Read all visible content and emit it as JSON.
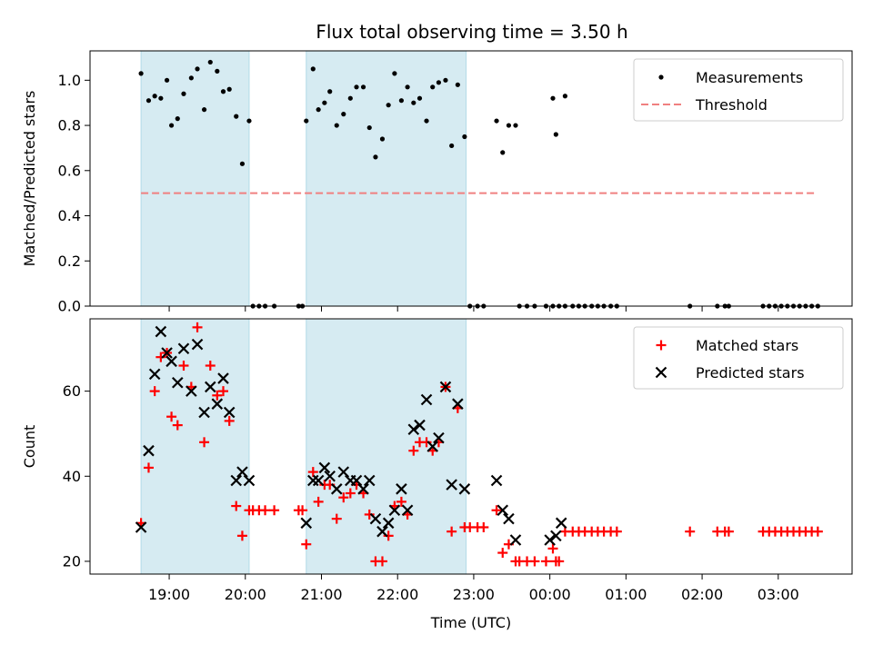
{
  "figure": {
    "title": "Flux total observing time = 3.50 h",
    "xlabel": "Time (UTC)"
  },
  "chart_data": [
    {
      "type": "scatter",
      "panel": "top",
      "ylabel": "Matched/Predicted stars",
      "xlim_hours_utc": [
        17.96,
        27.97
      ],
      "ylim": [
        0,
        1.13
      ],
      "yticks": [
        "0.0",
        "0.2",
        "0.4",
        "0.6",
        "0.8",
        "1.0"
      ],
      "xticks": [
        "19:00",
        "20:00",
        "21:00",
        "22:00",
        "23:00",
        "00:00",
        "01:00",
        "02:00",
        "03:00"
      ],
      "shaded_spans": [
        [
          18.63,
          20.05
        ],
        [
          20.8,
          22.9
        ]
      ],
      "threshold": {
        "name": "Threshold",
        "value": 0.5,
        "x_range": [
          18.63,
          27.5
        ],
        "color": "#f08080"
      },
      "legend": {
        "position": "top-right",
        "entries": [
          "Measurements",
          "Threshold"
        ]
      },
      "series": [
        {
          "name": "Measurements",
          "marker": "dot",
          "color": "#000000",
          "points": [
            [
              18.63,
              1.03
            ],
            [
              18.73,
              0.91
            ],
            [
              18.81,
              0.93
            ],
            [
              18.89,
              0.92
            ],
            [
              18.97,
              1.0
            ],
            [
              19.03,
              0.8
            ],
            [
              19.11,
              0.83
            ],
            [
              19.19,
              0.94
            ],
            [
              19.29,
              1.01
            ],
            [
              19.37,
              1.05
            ],
            [
              19.46,
              0.87
            ],
            [
              19.54,
              1.08
            ],
            [
              19.63,
              1.04
            ],
            [
              19.71,
              0.95
            ],
            [
              19.79,
              0.96
            ],
            [
              19.88,
              0.84
            ],
            [
              19.96,
              0.63
            ],
            [
              20.05,
              0.82
            ],
            [
              20.1,
              0
            ],
            [
              20.18,
              0
            ],
            [
              20.26,
              0
            ],
            [
              20.38,
              0
            ],
            [
              20.7,
              0
            ],
            [
              20.75,
              0
            ],
            [
              20.8,
              0.82
            ],
            [
              20.89,
              1.05
            ],
            [
              20.96,
              0.87
            ],
            [
              21.04,
              0.9
            ],
            [
              21.11,
              0.95
            ],
            [
              21.2,
              0.8
            ],
            [
              21.29,
              0.85
            ],
            [
              21.38,
              0.92
            ],
            [
              21.46,
              0.97
            ],
            [
              21.55,
              0.97
            ],
            [
              21.63,
              0.79
            ],
            [
              21.71,
              0.66
            ],
            [
              21.8,
              0.74
            ],
            [
              21.88,
              0.89
            ],
            [
              21.96,
              1.03
            ],
            [
              22.05,
              0.91
            ],
            [
              22.13,
              0.97
            ],
            [
              22.21,
              0.9
            ],
            [
              22.29,
              0.92
            ],
            [
              22.38,
              0.82
            ],
            [
              22.46,
              0.97
            ],
            [
              22.54,
              0.99
            ],
            [
              22.63,
              1.0
            ],
            [
              22.71,
              0.71
            ],
            [
              22.79,
              0.98
            ],
            [
              22.88,
              0.75
            ],
            [
              22.95,
              0
            ],
            [
              23.05,
              0
            ],
            [
              23.13,
              0
            ],
            [
              23.3,
              0.82
            ],
            [
              23.38,
              0.68
            ],
            [
              23.46,
              0.8
            ],
            [
              23.55,
              0.8
            ],
            [
              23.6,
              0
            ],
            [
              23.7,
              0
            ],
            [
              23.8,
              0
            ],
            [
              23.95,
              0
            ],
            [
              24.04,
              0.92
            ],
            [
              24.04,
              0
            ],
            [
              24.08,
              0.76
            ],
            [
              24.12,
              0
            ],
            [
              24.2,
              0.93
            ],
            [
              24.2,
              0
            ],
            [
              24.3,
              0
            ],
            [
              24.38,
              0
            ],
            [
              24.46,
              0
            ],
            [
              24.55,
              0
            ],
            [
              24.63,
              0
            ],
            [
              24.71,
              0
            ],
            [
              24.8,
              0
            ],
            [
              24.88,
              0
            ],
            [
              25.84,
              0
            ],
            [
              26.2,
              0
            ],
            [
              26.3,
              0
            ],
            [
              26.35,
              0
            ],
            [
              26.8,
              0
            ],
            [
              26.88,
              0
            ],
            [
              26.96,
              0
            ],
            [
              27.04,
              0
            ],
            [
              27.12,
              0
            ],
            [
              27.2,
              0
            ],
            [
              27.28,
              0
            ],
            [
              27.36,
              0
            ],
            [
              27.44,
              0
            ],
            [
              27.52,
              0
            ]
          ]
        }
      ]
    },
    {
      "type": "scatter",
      "panel": "bottom",
      "ylabel": "Count",
      "xlabel": "Time (UTC)",
      "xlim_hours_utc": [
        17.96,
        27.97
      ],
      "ylim": [
        17,
        77
      ],
      "yticks": [
        "20",
        "40",
        "60"
      ],
      "xticks": [
        "19:00",
        "20:00",
        "21:00",
        "22:00",
        "23:00",
        "00:00",
        "01:00",
        "02:00",
        "03:00"
      ],
      "shaded_spans": [
        [
          18.63,
          20.05
        ],
        [
          20.8,
          22.9
        ]
      ],
      "legend": {
        "position": "top-right",
        "entries": [
          "Matched stars",
          "Predicted stars"
        ]
      },
      "series": [
        {
          "name": "Matched stars",
          "marker": "plus",
          "color": "#ff0000",
          "points": [
            [
              18.63,
              29
            ],
            [
              18.73,
              42
            ],
            [
              18.81,
              60
            ],
            [
              18.89,
              68
            ],
            [
              18.97,
              69
            ],
            [
              19.03,
              54
            ],
            [
              19.11,
              52
            ],
            [
              19.19,
              66
            ],
            [
              19.29,
              61
            ],
            [
              19.37,
              75
            ],
            [
              19.46,
              48
            ],
            [
              19.54,
              66
            ],
            [
              19.63,
              59
            ],
            [
              19.71,
              60
            ],
            [
              19.79,
              53
            ],
            [
              19.88,
              33
            ],
            [
              19.96,
              26
            ],
            [
              20.05,
              32
            ],
            [
              20.1,
              32
            ],
            [
              20.18,
              32
            ],
            [
              20.26,
              32
            ],
            [
              20.38,
              32
            ],
            [
              20.7,
              32
            ],
            [
              20.75,
              32
            ],
            [
              20.8,
              24
            ],
            [
              20.89,
              41
            ],
            [
              20.96,
              34
            ],
            [
              21.04,
              38
            ],
            [
              21.11,
              38
            ],
            [
              21.2,
              30
            ],
            [
              21.29,
              35
            ],
            [
              21.38,
              36
            ],
            [
              21.46,
              38
            ],
            [
              21.55,
              36
            ],
            [
              21.63,
              31
            ],
            [
              21.71,
              20
            ],
            [
              21.8,
              20
            ],
            [
              21.88,
              26
            ],
            [
              21.96,
              33
            ],
            [
              22.05,
              34
            ],
            [
              22.13,
              31
            ],
            [
              22.21,
              46
            ],
            [
              22.29,
              48
            ],
            [
              22.38,
              48
            ],
            [
              22.46,
              46
            ],
            [
              22.54,
              48
            ],
            [
              22.63,
              61
            ],
            [
              22.71,
              27
            ],
            [
              22.79,
              56
            ],
            [
              22.88,
              28
            ],
            [
              22.95,
              28
            ],
            [
              23.05,
              28
            ],
            [
              23.13,
              28
            ],
            [
              23.3,
              32
            ],
            [
              23.38,
              22
            ],
            [
              23.46,
              24
            ],
            [
              23.55,
              20
            ],
            [
              23.6,
              20
            ],
            [
              23.7,
              20
            ],
            [
              23.8,
              20
            ],
            [
              23.95,
              20
            ],
            [
              24.04,
              23
            ],
            [
              24.08,
              20
            ],
            [
              24.12,
              20
            ],
            [
              24.2,
              27
            ],
            [
              24.3,
              27
            ],
            [
              24.38,
              27
            ],
            [
              24.46,
              27
            ],
            [
              24.55,
              27
            ],
            [
              24.63,
              27
            ],
            [
              24.71,
              27
            ],
            [
              24.8,
              27
            ],
            [
              24.88,
              27
            ],
            [
              25.84,
              27
            ],
            [
              26.2,
              27
            ],
            [
              26.3,
              27
            ],
            [
              26.35,
              27
            ],
            [
              26.8,
              27
            ],
            [
              26.88,
              27
            ],
            [
              26.96,
              27
            ],
            [
              27.04,
              27
            ],
            [
              27.12,
              27
            ],
            [
              27.2,
              27
            ],
            [
              27.28,
              27
            ],
            [
              27.36,
              27
            ],
            [
              27.44,
              27
            ],
            [
              27.52,
              27
            ]
          ]
        },
        {
          "name": "Predicted stars",
          "marker": "x",
          "color": "#000000",
          "points": [
            [
              18.63,
              28
            ],
            [
              18.73,
              46
            ],
            [
              18.81,
              64
            ],
            [
              18.89,
              74
            ],
            [
              18.97,
              69
            ],
            [
              19.03,
              67
            ],
            [
              19.11,
              62
            ],
            [
              19.19,
              70
            ],
            [
              19.29,
              60
            ],
            [
              19.37,
              71
            ],
            [
              19.46,
              55
            ],
            [
              19.54,
              61
            ],
            [
              19.63,
              57
            ],
            [
              19.71,
              63
            ],
            [
              19.79,
              55
            ],
            [
              19.88,
              39
            ],
            [
              19.96,
              41
            ],
            [
              20.05,
              39
            ],
            [
              20.8,
              29
            ],
            [
              20.89,
              39
            ],
            [
              20.96,
              39
            ],
            [
              21.04,
              42
            ],
            [
              21.11,
              40
            ],
            [
              21.2,
              37
            ],
            [
              21.29,
              41
            ],
            [
              21.38,
              39
            ],
            [
              21.46,
              39
            ],
            [
              21.55,
              37
            ],
            [
              21.63,
              39
            ],
            [
              21.71,
              30
            ],
            [
              21.8,
              27
            ],
            [
              21.88,
              29
            ],
            [
              21.96,
              32
            ],
            [
              22.05,
              37
            ],
            [
              22.13,
              32
            ],
            [
              22.21,
              51
            ],
            [
              22.29,
              52
            ],
            [
              22.38,
              58
            ],
            [
              22.46,
              47
            ],
            [
              22.54,
              49
            ],
            [
              22.63,
              61
            ],
            [
              22.71,
              38
            ],
            [
              22.79,
              57
            ],
            [
              22.88,
              37
            ],
            [
              23.3,
              39
            ],
            [
              23.38,
              32
            ],
            [
              23.46,
              30
            ],
            [
              23.55,
              25
            ],
            [
              24.0,
              25
            ],
            [
              24.08,
              26
            ],
            [
              24.15,
              29
            ]
          ]
        }
      ]
    }
  ]
}
